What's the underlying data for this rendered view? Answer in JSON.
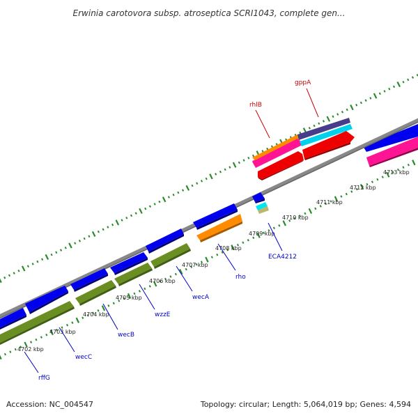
{
  "title": "Erwinia carotovora subsp. atroseptica SCRI1043, complete gen...",
  "accession": "Accession: NC_004547",
  "summary": "Topology: circular; Length: 5,064,019 bp; Genes: 4,594",
  "colors": {
    "backbone": "#888888",
    "ticks": "#2a8a2a",
    "forward_label": "#0000cc",
    "reverse_label": "#cc0000",
    "blue": "#0000ee",
    "olive": "#6b8e23",
    "orange": "#ff8c00",
    "red": "#ee0000",
    "pink": "#ff1493",
    "cyan": "#00e5ee",
    "purple": "#483d8b",
    "tan": "#bdb76b"
  },
  "kbp_ticks": [
    "4702 kbp",
    "4703 kbp",
    "4704 kbp",
    "4705 kbp",
    "4706 kbp",
    "4707 kbp",
    "4708 kbp",
    "4709 kbp",
    "4710 kbp",
    "4711 kbp",
    "4712 kbp",
    "4713 kbp"
  ],
  "gene_labels": [
    {
      "name": "rffG",
      "strand": "forward"
    },
    {
      "name": "wecC",
      "strand": "forward"
    },
    {
      "name": "wecB",
      "strand": "forward"
    },
    {
      "name": "wzzE",
      "strand": "forward"
    },
    {
      "name": "wecA",
      "strand": "forward"
    },
    {
      "name": "rho",
      "strand": "forward"
    },
    {
      "name": "ECA4212",
      "strand": "forward"
    },
    {
      "name": "rhlB",
      "strand": "reverse"
    },
    {
      "name": "gppA",
      "strand": "reverse"
    }
  ]
}
